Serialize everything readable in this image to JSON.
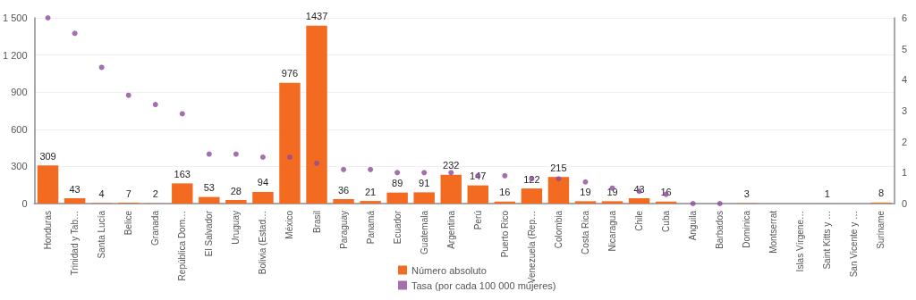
{
  "chart_data": {
    "type": "bar",
    "categories": [
      "Honduras",
      "Trinidad y Tab…",
      "Santa Lucía",
      "Belice",
      "Granada",
      "República Dom…",
      "El Salvador",
      "Uruguay",
      "Bolivia (Estad…",
      "México",
      "Brasil",
      "Paraguay",
      "Panamá",
      "Ecuador",
      "Guatemala",
      "Argentina",
      "Perú",
      "Puerto Rico",
      "Venezuela (Rep…",
      "Colombia",
      "Costa Rica",
      "Nicaragua",
      "Chile",
      "Cuba",
      "Anguila",
      "Barbados",
      "Dominica",
      "Montserrat",
      "Islas Vírgene…",
      "Saint Kitts y …",
      "San Vicente y …",
      "Suriname"
    ],
    "series": [
      {
        "name": "Número absoluto",
        "color": "#f26b21",
        "values": [
          309,
          43,
          4,
          7,
          2,
          163,
          53,
          28,
          94,
          976,
          1437,
          36,
          21,
          89,
          91,
          232,
          147,
          16,
          122,
          215,
          19,
          19,
          43,
          16,
          null,
          null,
          3,
          null,
          null,
          1,
          null,
          8
        ],
        "value_labels": [
          "309",
          "43",
          "4",
          "7",
          "2",
          "163",
          "53",
          "28",
          "94",
          "976",
          "1437",
          "36",
          "21",
          "89",
          "91",
          "232",
          "147",
          "16",
          "122",
          "215",
          "19",
          "19",
          "43",
          "16",
          null,
          null,
          "3",
          null,
          null,
          "1",
          null,
          "8"
        ]
      },
      {
        "name": "Tasa (por cada 100 000 mujeres)",
        "type": "scatter",
        "axis": "y2",
        "color": "#8e4b9b",
        "values": [
          6.0,
          5.5,
          4.4,
          3.5,
          3.2,
          2.9,
          1.6,
          1.6,
          1.5,
          1.5,
          1.3,
          1.1,
          1.1,
          1.0,
          1.0,
          1.0,
          0.9,
          0.9,
          0.8,
          0.8,
          0.7,
          0.5,
          0.4,
          0.3,
          0,
          0,
          null,
          null,
          null,
          null,
          null,
          null
        ]
      }
    ],
    "ylim": [
      0,
      1500
    ],
    "yticks": [
      0,
      300,
      600,
      900,
      {
        "value": 1200,
        "label": "1 200"
      },
      {
        "value": 1500,
        "label": "1 500"
      }
    ],
    "y2lim": [
      0,
      6
    ],
    "y2ticks": [
      0,
      1,
      2,
      3,
      4,
      5,
      6
    ],
    "grid": "y",
    "legend": "bottom",
    "marker": "circle"
  }
}
